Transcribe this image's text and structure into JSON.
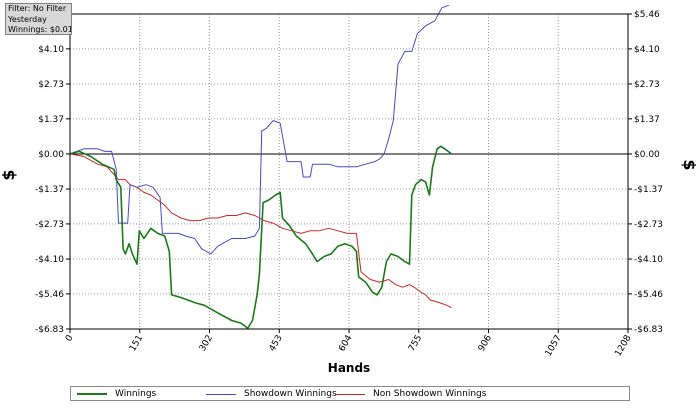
{
  "filter_box": {
    "line1": "Filter: No Filter",
    "line2": "Yesterday",
    "line3": "Winnings: $0.01"
  },
  "chart_data": {
    "type": "line",
    "xlabel": "Hands",
    "ylabel_left": "$",
    "ylabel_right": "$",
    "xlim": [
      0,
      1208
    ],
    "ylim": [
      -6.83,
      5.46
    ],
    "x_ticks": [
      0,
      151,
      302,
      453,
      604,
      755,
      906,
      1057,
      1208
    ],
    "x_tick_labels": [
      "0",
      "151",
      "302",
      "453",
      "604",
      "755",
      "906",
      "1057",
      "1208"
    ],
    "y_ticks": [
      5.46,
      4.1,
      2.73,
      1.37,
      0.0,
      -1.37,
      -2.73,
      -4.1,
      -5.46,
      -6.83
    ],
    "y_tick_labels": [
      "$5.46",
      "$4.10",
      "$2.73",
      "$1.37",
      "$0.00",
      "-$1.37",
      "-$2.73",
      "-$4.10",
      "-$5.46",
      "-$6.83"
    ],
    "grid": true,
    "legend_position": "bottom",
    "series": [
      {
        "name": "Winnings",
        "color": "#1a7a1a",
        "points": [
          [
            0,
            0
          ],
          [
            20,
            0.1
          ],
          [
            45,
            -0.1
          ],
          [
            70,
            -0.4
          ],
          [
            95,
            -0.6
          ],
          [
            100,
            -1.0
          ],
          [
            110,
            -1.3
          ],
          [
            115,
            -3.7
          ],
          [
            120,
            -3.9
          ],
          [
            128,
            -3.5
          ],
          [
            135,
            -3.9
          ],
          [
            145,
            -4.3
          ],
          [
            150,
            -3.0
          ],
          [
            160,
            -3.3
          ],
          [
            175,
            -2.9
          ],
          [
            190,
            -3.1
          ],
          [
            205,
            -3.2
          ],
          [
            215,
            -3.8
          ],
          [
            220,
            -5.5
          ],
          [
            240,
            -5.6
          ],
          [
            255,
            -5.7
          ],
          [
            270,
            -5.8
          ],
          [
            290,
            -5.9
          ],
          [
            310,
            -6.1
          ],
          [
            330,
            -6.3
          ],
          [
            350,
            -6.5
          ],
          [
            370,
            -6.6
          ],
          [
            385,
            -6.8
          ],
          [
            395,
            -6.5
          ],
          [
            405,
            -5.5
          ],
          [
            410,
            -4.7
          ],
          [
            418,
            -1.9
          ],
          [
            430,
            -1.8
          ],
          [
            445,
            -1.6
          ],
          [
            455,
            -1.5
          ],
          [
            460,
            -2.5
          ],
          [
            475,
            -2.8
          ],
          [
            490,
            -3.2
          ],
          [
            510,
            -3.5
          ],
          [
            525,
            -3.9
          ],
          [
            535,
            -4.2
          ],
          [
            550,
            -4.0
          ],
          [
            565,
            -3.9
          ],
          [
            580,
            -3.6
          ],
          [
            595,
            -3.5
          ],
          [
            610,
            -3.6
          ],
          [
            620,
            -3.8
          ],
          [
            625,
            -4.8
          ],
          [
            640,
            -5.0
          ],
          [
            655,
            -5.4
          ],
          [
            665,
            -5.5
          ],
          [
            675,
            -5.2
          ],
          [
            685,
            -4.2
          ],
          [
            695,
            -3.9
          ],
          [
            710,
            -4.0
          ],
          [
            725,
            -4.2
          ],
          [
            735,
            -4.3
          ],
          [
            740,
            -1.6
          ],
          [
            748,
            -1.2
          ],
          [
            760,
            -1.0
          ],
          [
            770,
            -1.1
          ],
          [
            778,
            -1.6
          ],
          [
            785,
            -0.5
          ],
          [
            795,
            0.2
          ],
          [
            803,
            0.3
          ],
          [
            815,
            0.15
          ],
          [
            826,
            0.0
          ]
        ]
      },
      {
        "name": "Showdown Winnings",
        "color": "#4a4ac0",
        "points": [
          [
            0,
            0
          ],
          [
            30,
            0.2
          ],
          [
            60,
            0.2
          ],
          [
            75,
            0.1
          ],
          [
            90,
            0.1
          ],
          [
            100,
            -0.6
          ],
          [
            105,
            -2.7
          ],
          [
            125,
            -2.7
          ],
          [
            130,
            -1.2
          ],
          [
            145,
            -1.3
          ],
          [
            165,
            -1.2
          ],
          [
            180,
            -1.3
          ],
          [
            195,
            -1.7
          ],
          [
            200,
            -3.1
          ],
          [
            235,
            -3.1
          ],
          [
            250,
            -3.2
          ],
          [
            270,
            -3.3
          ],
          [
            285,
            -3.7
          ],
          [
            305,
            -3.9
          ],
          [
            320,
            -3.6
          ],
          [
            330,
            -3.5
          ],
          [
            340,
            -3.4
          ],
          [
            350,
            -3.3
          ],
          [
            380,
            -3.3
          ],
          [
            400,
            -3.2
          ],
          [
            410,
            -2.9
          ],
          [
            415,
            0.9
          ],
          [
            425,
            1.0
          ],
          [
            440,
            1.3
          ],
          [
            455,
            1.2
          ],
          [
            470,
            -0.3
          ],
          [
            500,
            -0.3
          ],
          [
            505,
            -0.9
          ],
          [
            520,
            -0.9
          ],
          [
            525,
            -0.4
          ],
          [
            560,
            -0.4
          ],
          [
            580,
            -0.5
          ],
          [
            620,
            -0.5
          ],
          [
            640,
            -0.4
          ],
          [
            660,
            -0.3
          ],
          [
            670,
            -0.2
          ],
          [
            680,
            0.0
          ],
          [
            690,
            0.6
          ],
          [
            700,
            1.3
          ],
          [
            710,
            3.5
          ],
          [
            725,
            4.0
          ],
          [
            740,
            4.0
          ],
          [
            752,
            4.7
          ],
          [
            770,
            5.0
          ],
          [
            790,
            5.2
          ],
          [
            805,
            5.7
          ],
          [
            820,
            5.8
          ]
        ]
      },
      {
        "name": "Non Showdown Winnings",
        "color": "#c82828",
        "points": [
          [
            0,
            0
          ],
          [
            30,
            -0.1
          ],
          [
            60,
            -0.4
          ],
          [
            80,
            -0.5
          ],
          [
            95,
            -0.8
          ],
          [
            105,
            -1.0
          ],
          [
            120,
            -1.0
          ],
          [
            130,
            -1.2
          ],
          [
            145,
            -1.3
          ],
          [
            160,
            -1.5
          ],
          [
            175,
            -1.6
          ],
          [
            190,
            -1.8
          ],
          [
            205,
            -2.0
          ],
          [
            220,
            -2.3
          ],
          [
            240,
            -2.5
          ],
          [
            260,
            -2.6
          ],
          [
            280,
            -2.6
          ],
          [
            300,
            -2.5
          ],
          [
            320,
            -2.5
          ],
          [
            340,
            -2.4
          ],
          [
            360,
            -2.4
          ],
          [
            380,
            -2.3
          ],
          [
            400,
            -2.4
          ],
          [
            420,
            -2.6
          ],
          [
            440,
            -2.7
          ],
          [
            460,
            -2.9
          ],
          [
            480,
            -3.0
          ],
          [
            500,
            -3.1
          ],
          [
            520,
            -3.0
          ],
          [
            540,
            -3.0
          ],
          [
            560,
            -2.9
          ],
          [
            580,
            -3.0
          ],
          [
            600,
            -3.1
          ],
          [
            620,
            -3.1
          ],
          [
            630,
            -4.6
          ],
          [
            650,
            -4.9
          ],
          [
            670,
            -5.0
          ],
          [
            690,
            -4.9
          ],
          [
            705,
            -5.1
          ],
          [
            720,
            -5.2
          ],
          [
            735,
            -5.1
          ],
          [
            745,
            -5.2
          ],
          [
            760,
            -5.4
          ],
          [
            770,
            -5.5
          ],
          [
            780,
            -5.7
          ],
          [
            800,
            -5.8
          ],
          [
            815,
            -5.9
          ],
          [
            826,
            -6.0
          ]
        ]
      }
    ]
  }
}
